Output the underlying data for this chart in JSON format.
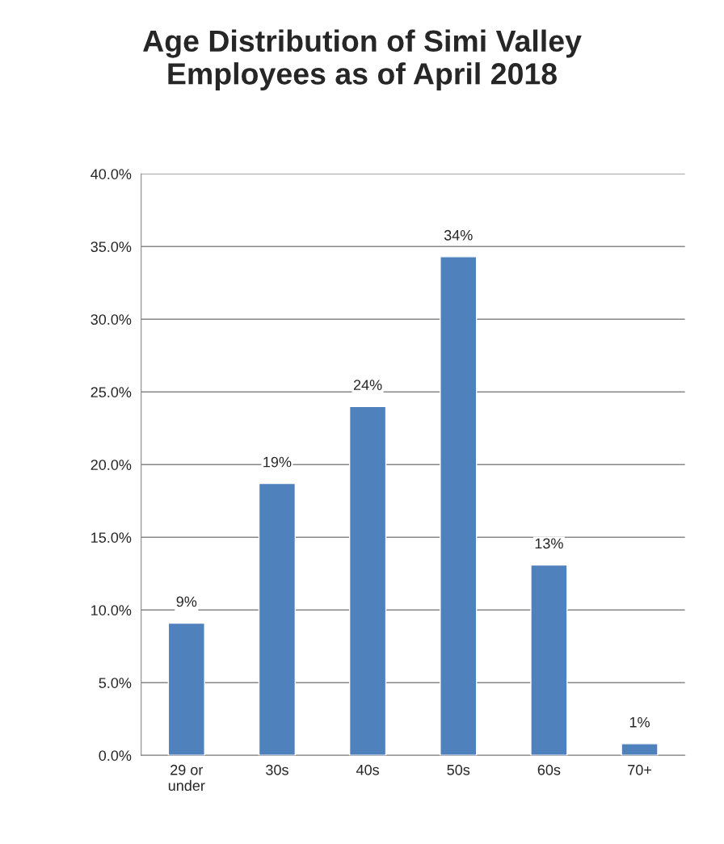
{
  "chart_data": {
    "type": "bar",
    "title": "Age Distribution of Simi Valley\nEmployees as of April 2018",
    "categories": [
      "29 or\nunder",
      "30s",
      "40s",
      "50s",
      "60s",
      "70+"
    ],
    "values": [
      9.1,
      18.7,
      24.0,
      34.3,
      13.1,
      0.8
    ],
    "value_labels": [
      "9%",
      "19%",
      "24%",
      "34%",
      "13%",
      "1%"
    ],
    "color": "#4f81bd",
    "ylim": [
      0,
      40
    ],
    "yticks": [
      {
        "value": 0,
        "label": "0.0%"
      },
      {
        "value": 5,
        "label": "5.0%"
      },
      {
        "value": 10,
        "label": "10.0%"
      },
      {
        "value": 15,
        "label": "15.0%"
      },
      {
        "value": 20,
        "label": "20.0%"
      },
      {
        "value": 25,
        "label": "25.0%"
      },
      {
        "value": 30,
        "label": "30.0%"
      },
      {
        "value": 35,
        "label": "35.0%"
      },
      {
        "value": 40,
        "label": "40.0%"
      }
    ],
    "grid": "y",
    "legend": false
  }
}
